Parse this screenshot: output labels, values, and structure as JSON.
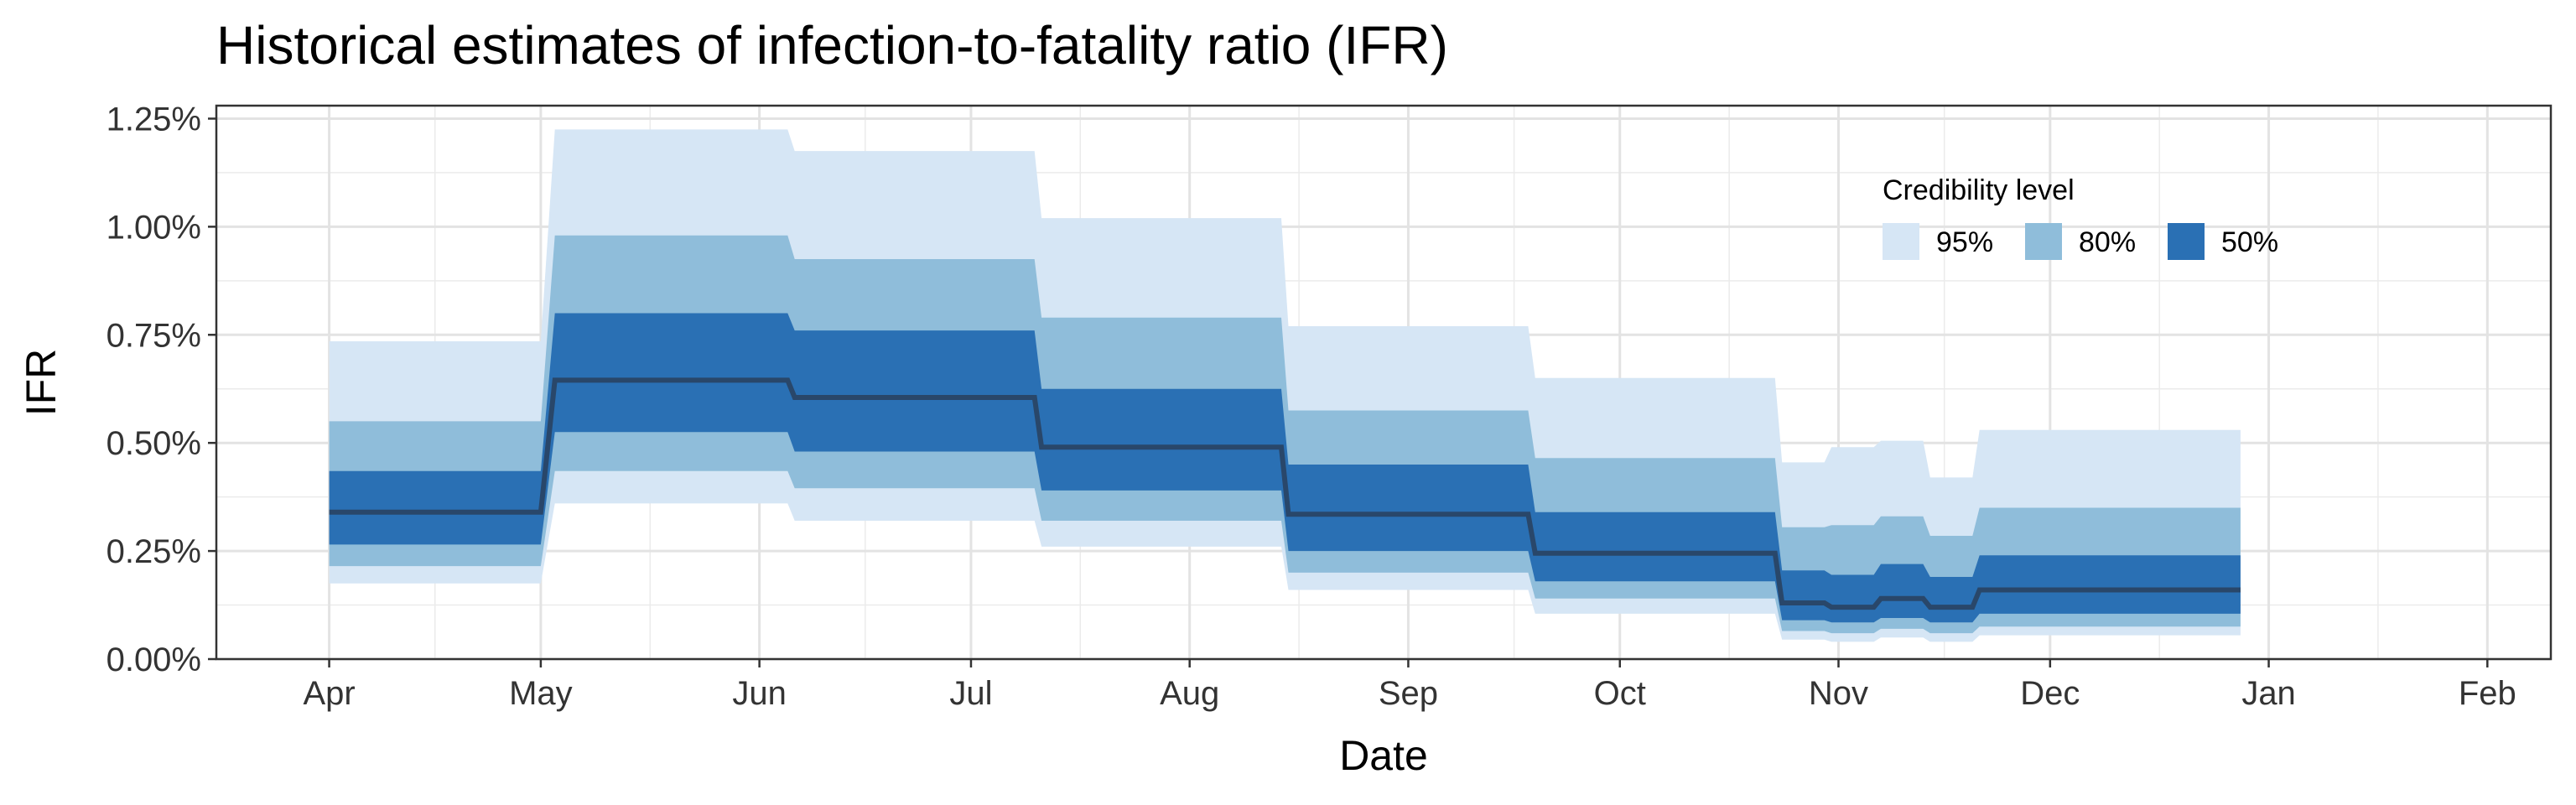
{
  "chart_data": {
    "type": "area",
    "title": "Historical estimates of infection-to-fatality ratio (IFR)",
    "xlabel": "Date",
    "ylabel": "IFR",
    "y_format": "percent",
    "ylim": [
      0,
      1.28
    ],
    "yticks": [
      0,
      0.25,
      0.5,
      0.75,
      1.0,
      1.25
    ],
    "ytick_labels": [
      "0.00%",
      "0.25%",
      "0.50%",
      "0.75%",
      "1.00%",
      "1.25%"
    ],
    "xlim": [
      "2020-03-16",
      "2021-02-10"
    ],
    "xticks": [
      "2020-04-01",
      "2020-05-01",
      "2020-06-01",
      "2020-07-01",
      "2020-08-01",
      "2020-09-01",
      "2020-10-01",
      "2020-11-01",
      "2020-12-01",
      "2021-01-01",
      "2021-02-01"
    ],
    "xtick_labels": [
      "Apr",
      "May",
      "Jun",
      "Jul",
      "Aug",
      "Sep",
      "Oct",
      "Nov",
      "Dec",
      "Jan",
      "Feb"
    ],
    "grid": true,
    "legend": {
      "title": "Credibility level",
      "position": "top-right",
      "items": [
        {
          "label": "95%",
          "color": "#d6e6f5"
        },
        {
          "label": "80%",
          "color": "#8fbdda"
        },
        {
          "label": "50%",
          "color": "#2a70b4"
        }
      ]
    },
    "median_color": "#29476a",
    "series": [
      {
        "start": "2020-04-01",
        "end": "2020-05-01",
        "median": 0.34,
        "lo50": 0.265,
        "hi50": 0.435,
        "lo80": 0.215,
        "hi80": 0.55,
        "lo95": 0.175,
        "hi95": 0.735
      },
      {
        "start": "2020-05-03",
        "end": "2020-06-05",
        "median": 0.645,
        "lo50": 0.525,
        "hi50": 0.8,
        "lo80": 0.435,
        "hi80": 0.98,
        "lo95": 0.36,
        "hi95": 1.225
      },
      {
        "start": "2020-06-06",
        "end": "2020-07-10",
        "median": 0.605,
        "lo50": 0.48,
        "hi50": 0.76,
        "lo80": 0.395,
        "hi80": 0.925,
        "lo95": 0.32,
        "hi95": 1.175
      },
      {
        "start": "2020-07-11",
        "end": "2020-08-14",
        "median": 0.49,
        "lo50": 0.39,
        "hi50": 0.625,
        "lo80": 0.32,
        "hi80": 0.79,
        "lo95": 0.26,
        "hi95": 1.02
      },
      {
        "start": "2020-08-15",
        "end": "2020-09-18",
        "median": 0.335,
        "lo50": 0.25,
        "hi50": 0.45,
        "lo80": 0.2,
        "hi80": 0.575,
        "lo95": 0.16,
        "hi95": 0.77
      },
      {
        "start": "2020-09-19",
        "end": "2020-10-23",
        "median": 0.245,
        "lo50": 0.18,
        "hi50": 0.34,
        "lo80": 0.14,
        "hi80": 0.465,
        "lo95": 0.105,
        "hi95": 0.65
      },
      {
        "start": "2020-10-24",
        "end": "2020-10-30",
        "median": 0.13,
        "lo50": 0.09,
        "hi50": 0.205,
        "lo80": 0.065,
        "hi80": 0.305,
        "lo95": 0.045,
        "hi95": 0.455
      },
      {
        "start": "2020-10-31",
        "end": "2020-11-06",
        "median": 0.12,
        "lo50": 0.085,
        "hi50": 0.195,
        "lo80": 0.06,
        "hi80": 0.31,
        "lo95": 0.04,
        "hi95": 0.49
      },
      {
        "start": "2020-11-07",
        "end": "2020-11-13",
        "median": 0.14,
        "lo50": 0.095,
        "hi50": 0.22,
        "lo80": 0.07,
        "hi80": 0.33,
        "lo95": 0.05,
        "hi95": 0.505
      },
      {
        "start": "2020-11-14",
        "end": "2020-11-20",
        "median": 0.12,
        "lo50": 0.085,
        "hi50": 0.19,
        "lo80": 0.06,
        "hi80": 0.285,
        "lo95": 0.04,
        "hi95": 0.42
      },
      {
        "start": "2020-11-21",
        "end": "2020-12-28",
        "median": 0.16,
        "lo50": 0.105,
        "hi50": 0.24,
        "lo80": 0.075,
        "hi80": 0.35,
        "lo95": 0.055,
        "hi95": 0.53
      }
    ]
  }
}
